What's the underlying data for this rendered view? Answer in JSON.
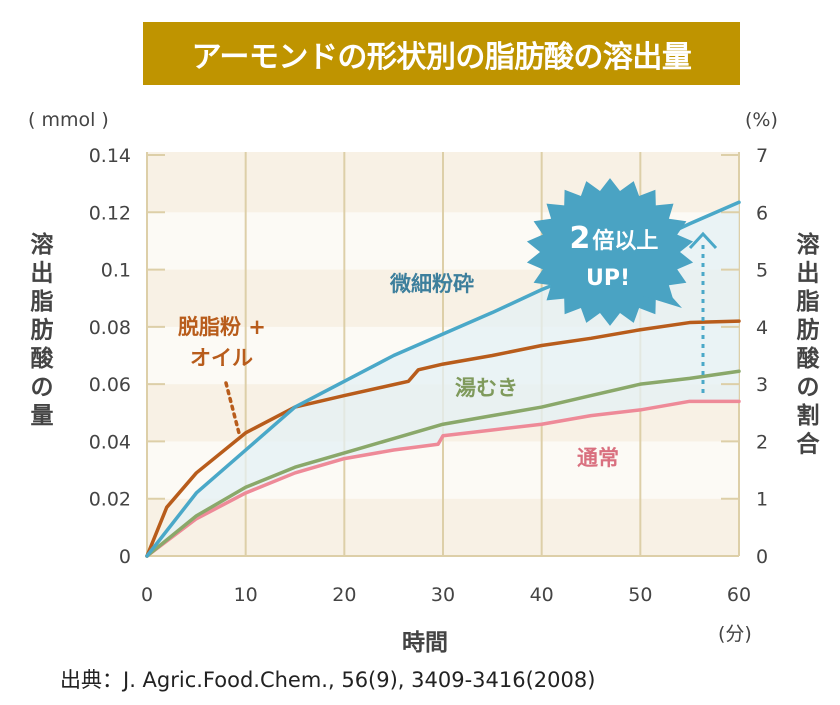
{
  "title": "アーモンドの形状別の脂肪酸の溶出量",
  "source": "出典：J. Agric.Food.Chem., 56(9), 3409-3416(2008)",
  "colors": {
    "banner": "#bf9400",
    "fine_powder": "#4aa8c8",
    "defatted_oil": "#b85c1b",
    "blanched": "#8aa86a",
    "normal": "#ee8a98",
    "fill": "#e4f0f4",
    "burst": "#4aa3c3"
  },
  "chart_data": {
    "type": "line",
    "title": "アーモンドの形状別の脂肪酸の溶出量",
    "xlabel": "時間",
    "x_unit": "(分)",
    "ylabel": "溶出脂肪酸の量",
    "y_unit": "( mmol )",
    "y2label": "溶出脂肪酸の割合",
    "y2_unit": "(%)",
    "xlim": [
      0,
      60
    ],
    "ylim": [
      0,
      0.14
    ],
    "y2lim": [
      0,
      7
    ],
    "grid": true,
    "x_ticks": [
      "0",
      "10",
      "20",
      "30",
      "40",
      "50",
      "60"
    ],
    "y_ticks": [
      "0",
      "0.02",
      "0.04",
      "0.06",
      "0.08",
      "0.1",
      "0.12",
      "0.14"
    ],
    "y2_ticks": [
      "0",
      "1",
      "2",
      "3",
      "4",
      "5",
      "6",
      "7"
    ],
    "series": [
      {
        "name": "微細粉砕",
        "color_key": "fine_powder",
        "x": [
          0,
          5,
          10,
          15,
          20,
          25,
          30,
          35,
          40,
          45,
          50,
          55,
          60
        ],
        "y": [
          0,
          0.022,
          0.037,
          0.052,
          0.061,
          0.07,
          0.0775,
          0.085,
          0.093,
          0.1,
          0.108,
          0.116,
          0.1235
        ]
      },
      {
        "name": "脱脂粉 + オイル",
        "color_key": "defatted_oil",
        "x": [
          0,
          2,
          5,
          10,
          15,
          20,
          26.5,
          27.5,
          30,
          35,
          40,
          45,
          50,
          55,
          60
        ],
        "y": [
          0,
          0.017,
          0.029,
          0.043,
          0.052,
          0.056,
          0.061,
          0.065,
          0.067,
          0.07,
          0.0735,
          0.076,
          0.079,
          0.0815,
          0.082
        ]
      },
      {
        "name": "湯むき",
        "color_key": "blanched",
        "x": [
          0,
          5,
          10,
          15,
          20,
          25,
          30,
          35,
          40,
          45,
          50,
          55,
          60
        ],
        "y": [
          0,
          0.014,
          0.024,
          0.031,
          0.036,
          0.041,
          0.046,
          0.049,
          0.052,
          0.056,
          0.06,
          0.062,
          0.0645
        ]
      },
      {
        "name": "通常",
        "color_key": "normal",
        "x": [
          0,
          5,
          10,
          15,
          20,
          25,
          29.5,
          30,
          35,
          40,
          45,
          50,
          55,
          60
        ],
        "y": [
          0,
          0.013,
          0.022,
          0.029,
          0.034,
          0.037,
          0.039,
          0.042,
          0.044,
          0.046,
          0.049,
          0.051,
          0.054,
          0.054
        ]
      }
    ],
    "annotations": {
      "burst_line1_num": "2",
      "burst_line1_text": "倍以上",
      "burst_line2": "UP!",
      "label_fine": "微細粉砕",
      "label_defatted_line1": "脱脂粉 +",
      "label_defatted_line2": "オイル",
      "label_blanched": "湯むき",
      "label_normal": "通常",
      "y_axis_title_chars": [
        "溶",
        "出",
        "脂",
        "肪",
        "酸",
        "の",
        "量"
      ],
      "y2_axis_title_chars": [
        "溶",
        "出",
        "脂",
        "肪",
        "酸",
        "の",
        "割",
        "合"
      ]
    }
  }
}
